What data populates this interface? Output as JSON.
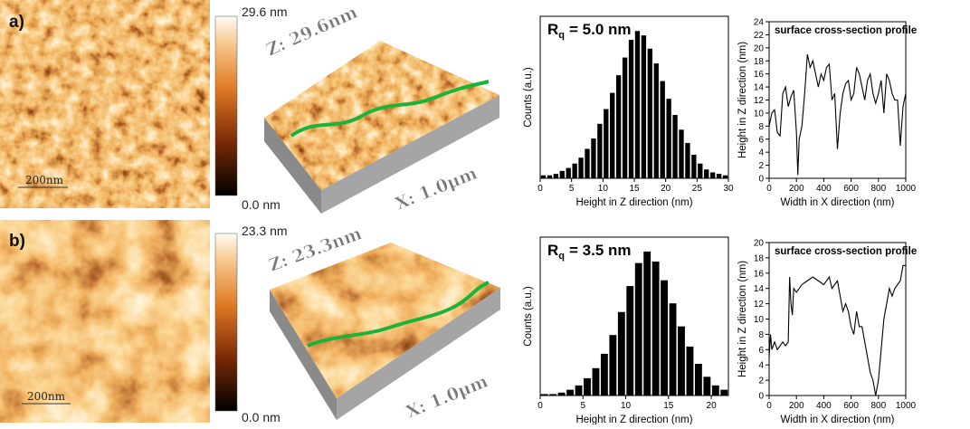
{
  "panels": [
    {
      "label": "a)",
      "colorbar_max": "29.6 nm",
      "colorbar_min": "0.0 nm",
      "scale_bar": "200nm",
      "z_label": "Z: 29.6nm",
      "x_label": "X: 1.0μm"
    },
    {
      "label": "b)",
      "colorbar_max": "23.3 nm",
      "colorbar_min": "0.0 nm",
      "scale_bar": "200nm",
      "z_label": "Z: 23.3nm",
      "x_label": "X: 1.0μm"
    }
  ],
  "chart_data": [
    {
      "type": "histogram",
      "annotation": {
        "symbol": "R",
        "subscript": "q",
        "text": "= 5.0 nm"
      },
      "x_label": "Height in Z direction (nm)",
      "y_label": "Counts (a.u.)",
      "color": "#000000",
      "bins": [
        0,
        1,
        2,
        3,
        4,
        5,
        6,
        7,
        8,
        9,
        10,
        11,
        12,
        13,
        14,
        15,
        16,
        17,
        18,
        19,
        20,
        21,
        22,
        23,
        24,
        25,
        26,
        27,
        28,
        29,
        30
      ],
      "values": [
        2,
        2,
        3,
        5,
        7,
        10,
        14,
        20,
        27,
        37,
        47,
        58,
        70,
        82,
        94,
        100,
        97,
        88,
        78,
        66,
        54,
        43,
        33,
        24,
        16,
        10,
        6,
        4,
        3,
        2
      ],
      "xlim": [
        0,
        30
      ],
      "xticks": [
        0,
        5,
        10,
        15,
        20,
        25,
        30
      ],
      "ylim": [
        0,
        110
      ]
    },
    {
      "type": "line",
      "title": "surface cross-section profile",
      "x_label": "Width in X direction (nm)",
      "y_label": "Height in Z direction (nm)",
      "color": "#000000",
      "x": [
        0,
        20,
        40,
        60,
        80,
        100,
        120,
        140,
        160,
        180,
        200,
        210,
        220,
        240,
        260,
        280,
        300,
        320,
        340,
        360,
        380,
        400,
        420,
        440,
        460,
        480,
        500,
        520,
        540,
        560,
        580,
        600,
        620,
        640,
        660,
        680,
        700,
        720,
        740,
        760,
        780,
        800,
        820,
        840,
        860,
        880,
        900,
        920,
        940,
        960,
        980,
        1000
      ],
      "values": [
        8,
        10,
        10.5,
        7,
        6.5,
        13,
        14,
        11,
        12.5,
        13.5,
        7,
        0.5,
        6,
        8,
        13,
        19,
        17,
        18,
        16,
        14,
        16,
        15,
        17,
        17.5,
        12,
        13,
        4.5,
        10,
        13,
        14.5,
        15,
        12,
        13,
        17,
        16,
        14,
        12,
        15,
        16,
        13,
        11.5,
        13,
        15,
        10,
        16,
        15,
        13,
        12,
        12,
        5,
        11,
        13
      ],
      "xlim": [
        0,
        1000
      ],
      "xticks": [
        0,
        200,
        400,
        600,
        800,
        1000
      ],
      "ylim": [
        0,
        24
      ],
      "yticks": [
        0,
        2,
        4,
        6,
        8,
        10,
        12,
        14,
        16,
        18,
        20,
        22,
        24
      ]
    },
    {
      "type": "histogram",
      "annotation": {
        "symbol": "R",
        "subscript": "q",
        "text": "= 3.5 nm"
      },
      "x_label": "Height in Z direction (nm)",
      "y_label": "Counts (a.u.)",
      "color": "#000000",
      "bins": [
        0,
        1,
        2,
        3,
        4,
        5,
        6,
        7,
        8,
        9,
        10,
        11,
        12,
        13,
        14,
        15,
        16,
        17,
        18,
        19,
        20,
        21,
        22
      ],
      "values": [
        1,
        1,
        2,
        4,
        7,
        12,
        19,
        29,
        42,
        58,
        76,
        92,
        100,
        93,
        80,
        64,
        48,
        34,
        22,
        13,
        7,
        4
      ],
      "xlim": [
        0,
        22
      ],
      "xticks": [
        0,
        5,
        10,
        15,
        20
      ],
      "ylim": [
        0,
        110
      ]
    },
    {
      "type": "line",
      "title": "surface cross-section profile",
      "x_label": "Width in X direction (nm)",
      "y_label": "Height in Z direction (nm)",
      "color": "#000000",
      "x": [
        0,
        10,
        20,
        40,
        60,
        80,
        100,
        120,
        140,
        150,
        160,
        170,
        180,
        200,
        240,
        280,
        320,
        360,
        400,
        440,
        460,
        480,
        500,
        520,
        540,
        560,
        580,
        600,
        620,
        640,
        660,
        680,
        700,
        720,
        740,
        760,
        780,
        800,
        820,
        840,
        860,
        880,
        900,
        920,
        940,
        960,
        980,
        1000
      ],
      "values": [
        5,
        8,
        6,
        7,
        6,
        6.5,
        7,
        6.5,
        7,
        15.5,
        12,
        10.5,
        14,
        13.5,
        14.5,
        15,
        15.5,
        15,
        14.5,
        15.5,
        14,
        14.5,
        15,
        13,
        11,
        12,
        11,
        9,
        8,
        11,
        9,
        9,
        7,
        5,
        3,
        2,
        0,
        2,
        6,
        10,
        12,
        14,
        13,
        14,
        14.5,
        15,
        17,
        17
      ],
      "xlim": [
        0,
        1000
      ],
      "xticks": [
        0,
        200,
        400,
        600,
        800,
        1000
      ],
      "ylim": [
        0,
        20
      ],
      "yticks": [
        0,
        2,
        4,
        6,
        8,
        10,
        12,
        14,
        16,
        18,
        20
      ]
    }
  ]
}
